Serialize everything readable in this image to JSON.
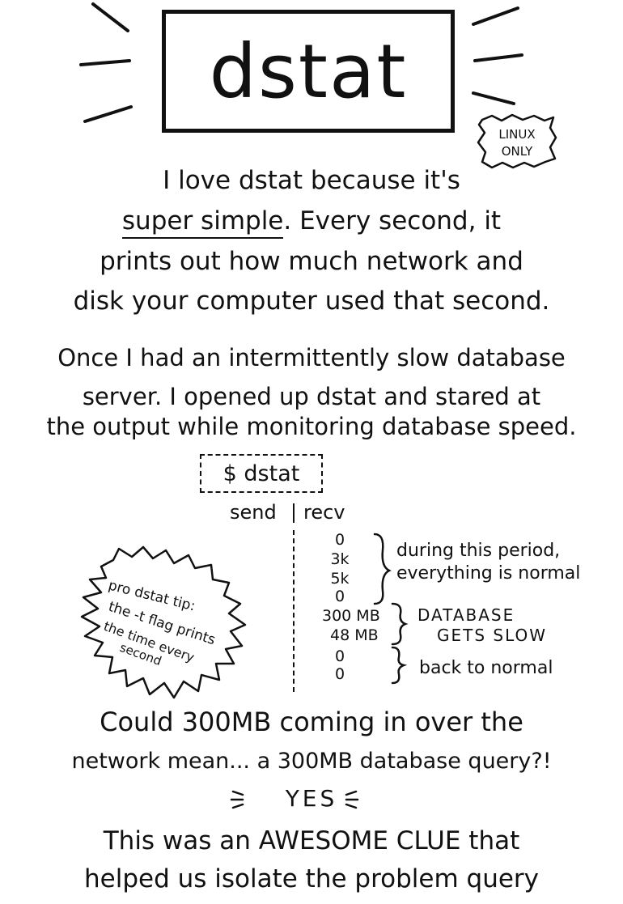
{
  "title": "dstat",
  "badge": [
    "LINUX",
    "ONLY"
  ],
  "intro": {
    "line1": "I love dstat because it's",
    "emphasis": "super simple",
    "line2_rest": ". Every second, it",
    "line3": "prints out how much network and",
    "line4": "disk your computer used that second."
  },
  "story": {
    "line1": "Once I had an intermittently slow database",
    "line2": "server. I opened up dstat and stared at",
    "line3": "the output while monitoring database speed."
  },
  "terminal": {
    "command": "$ dstat",
    "col_send": "send",
    "col_recv": "recv"
  },
  "values": {
    "normal": [
      "0",
      "3k",
      "5k",
      "0"
    ],
    "slow": [
      "300 MB",
      "48 MB"
    ],
    "back": [
      "0",
      "0"
    ]
  },
  "notes": {
    "normal": [
      "during this period,",
      "everything is normal"
    ],
    "slow": [
      "DATABASE",
      "GETS SLOW"
    ],
    "back": "back to normal"
  },
  "tip": [
    "pro dstat tip:",
    "the -t flag prints",
    "the time every",
    "second"
  ],
  "question": {
    "line1": "Could 300MB coming in over the",
    "line2": "network mean... a 300MB database query?!"
  },
  "yes": "YES",
  "conclusion": {
    "line1": "This was an AWESOME CLUE that",
    "line2": "helped us isolate the problem query"
  }
}
